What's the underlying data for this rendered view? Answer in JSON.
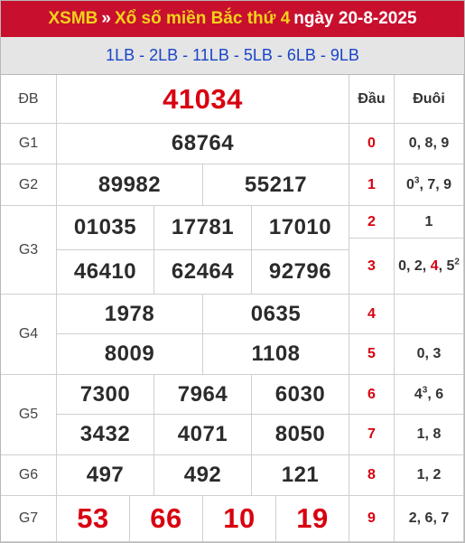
{
  "header": {
    "link": "XSMB",
    "separator": "»",
    "title": "Xổ số miền Bắc thứ 4",
    "date": "ngày 20-8-2025"
  },
  "subheader": {
    "codes": "1LB - 2LB - 11LB - 5LB - 6LB - 9LB"
  },
  "prizes": {
    "db": {
      "label": "ĐB",
      "values": [
        "41034"
      ]
    },
    "g1": {
      "label": "G1",
      "values": [
        "68764"
      ]
    },
    "g2": {
      "label": "G2",
      "values": [
        "89982",
        "55217"
      ]
    },
    "g3": {
      "label": "G3",
      "values": [
        "01035",
        "17781",
        "17010",
        "46410",
        "62464",
        "92796"
      ]
    },
    "g4": {
      "label": "G4",
      "values": [
        "1978",
        "0635",
        "8009",
        "1108"
      ]
    },
    "g5": {
      "label": "G5",
      "values": [
        "7300",
        "7964",
        "6030",
        "3432",
        "4071",
        "8050"
      ]
    },
    "g6": {
      "label": "G6",
      "values": [
        "497",
        "492",
        "121"
      ]
    },
    "g7": {
      "label": "G7",
      "values": [
        "53",
        "66",
        "10",
        "19"
      ]
    }
  },
  "loto": {
    "head_label": "Đầu",
    "tail_label": "Đuôi",
    "rows": [
      {
        "head": "0",
        "tail": "0, 8, 9"
      },
      {
        "head": "1",
        "tail": "0³, 7, 9"
      },
      {
        "head": "2",
        "tail": "1"
      },
      {
        "head": "3",
        "tail": "0, 2, 4, 5²"
      },
      {
        "head": "4",
        "tail": ""
      },
      {
        "head": "5",
        "tail": "0, 3"
      },
      {
        "head": "6",
        "tail": "4³, 6"
      },
      {
        "head": "7",
        "tail": "1, 8"
      },
      {
        "head": "8",
        "tail": "1, 2"
      },
      {
        "head": "9",
        "tail": "2, 6, 7"
      }
    ]
  },
  "colors": {
    "header_bg": "#c8102e",
    "accent_red": "#d80010",
    "link_blue": "#1a45c7",
    "header_text": "#f2d21b"
  }
}
